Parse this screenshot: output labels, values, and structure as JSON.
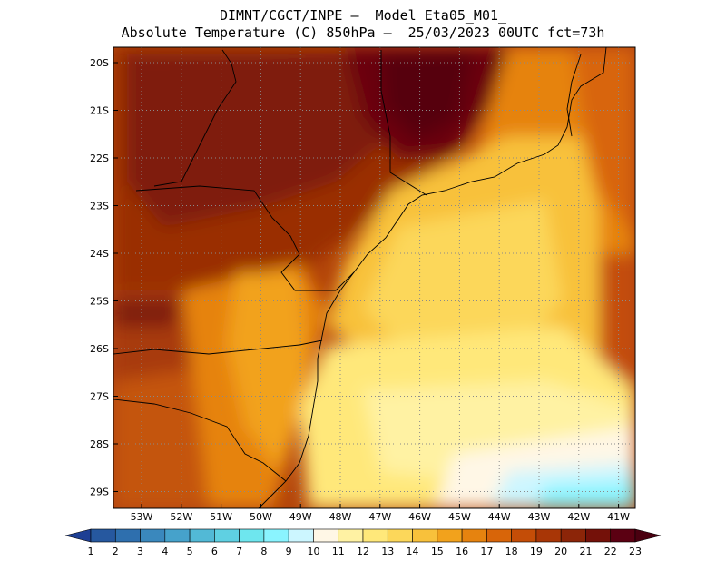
{
  "header": {
    "line1": "DIMNT/CGCT/INPE –  Model Eta05_M01_",
    "line2": "Absolute Temperature (C) 850hPa –  25/03/2023 00UTC fct=73h"
  },
  "map": {
    "variable": "Absolute Temperature",
    "units": "C",
    "level": "850hPa",
    "lat_labels": [
      "20S",
      "21S",
      "22S",
      "23S",
      "24S",
      "25S",
      "26S",
      "27S",
      "28S",
      "29S"
    ],
    "lon_labels": [
      "53W",
      "52W",
      "51W",
      "50W",
      "49W",
      "48W",
      "47W",
      "46W",
      "45W",
      "44W",
      "43W",
      "42W",
      "41W"
    ]
  },
  "colorbar": {
    "labels": [
      "1",
      "2",
      "3",
      "4",
      "5",
      "6",
      "7",
      "8",
      "9",
      "10",
      "11",
      "12",
      "13",
      "14",
      "15",
      "16",
      "17",
      "18",
      "19",
      "20",
      "21",
      "22",
      "23"
    ],
    "colors": [
      "#1d3f94",
      "#26589f",
      "#2e6fae",
      "#3a88bd",
      "#46a2cb",
      "#52b9d6",
      "#5fd0e2",
      "#6ee6ee",
      "#8af4ff",
      "#ccf6ff",
      "#fff7e6",
      "#fff2a3",
      "#ffe87a",
      "#fcd75a",
      "#f8c13b",
      "#f2a21c",
      "#e6830f",
      "#d86509",
      "#c44d07",
      "#a83606",
      "#8c2508",
      "#741109",
      "#5b0012",
      "#4a0010"
    ]
  }
}
